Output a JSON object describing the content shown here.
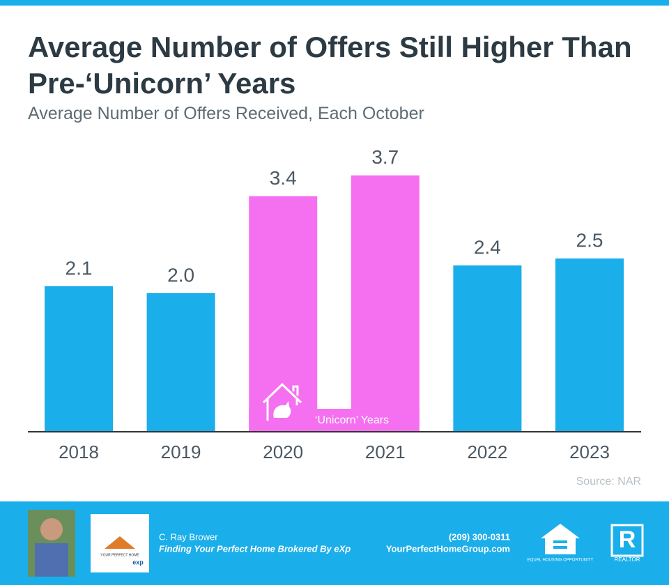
{
  "chart_data": {
    "type": "bar",
    "title": "Average Number of Offers Still Higher Than Pre-‘Unicorn’ Years",
    "subtitle": "Average Number of Offers Received, Each October",
    "categories": [
      "2018",
      "2019",
      "2020",
      "2021",
      "2022",
      "2023"
    ],
    "values": [
      2.1,
      2.0,
      3.4,
      3.7,
      2.4,
      2.5
    ],
    "value_labels": [
      "2.1",
      "2.0",
      "3.4",
      "3.7",
      "2.4",
      "2.5"
    ],
    "colors": [
      "#1aaeea",
      "#1aaeea",
      "#f570f0",
      "#f570f0",
      "#1aaeea",
      "#1aaeea"
    ],
    "annotation": "‘Unicorn’ Years",
    "source": "Source: NAR"
  },
  "footer": {
    "name": "C. Ray Brower",
    "tagline": "Finding Your Perfect Home Brokered By eXp",
    "phone": "(209) 300-0311",
    "website": "YourPerfectHomeGroup.com",
    "logo_text": "YOUR PERFECT HOME",
    "logo_brand": "exp",
    "equal_housing": "EQUAL HOUSING OPPORTUNITY",
    "realtor_letter": "R",
    "realtor": "REALTOR"
  }
}
